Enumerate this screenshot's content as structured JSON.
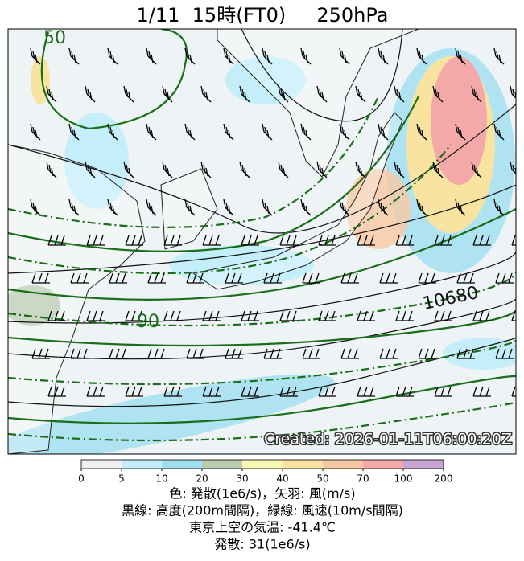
{
  "title": "1/11  15時(FT0)     250hPa",
  "map": {
    "contour_labels": [
      "50",
      "90",
      "10680"
    ],
    "stamp": "Created: 2026-01-11T06:00:20Z"
  },
  "colorbar": {
    "ticks": [
      0,
      5,
      10,
      20,
      30,
      40,
      50,
      70,
      100,
      200
    ],
    "colors": [
      "#f0f0f0",
      "#c4eefa",
      "#9fdff0",
      "#b9ccb2",
      "#f8f8b4",
      "#f8e4a0",
      "#f8c8a4",
      "#f4a8a8",
      "#c8a4d0"
    ]
  },
  "caption": [
    "色: 発散(1e6/s)，矢羽: 風(m/s)",
    "黒線: 高度(200m間隔)，緑線: 風速(10m/s間隔)",
    "東京上空の気温: -41.4℃",
    "発散: 31(1e6/s)"
  ]
}
